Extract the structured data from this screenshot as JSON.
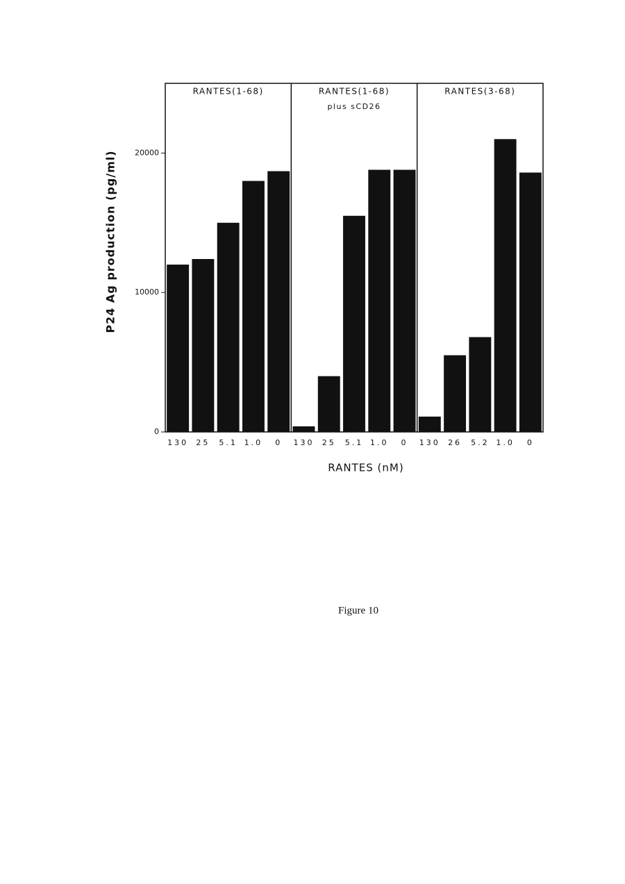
{
  "chart_data": {
    "type": "bar",
    "y_label": "P24  Ag  production  (pg/ml)",
    "x_label": "RANTES  (nM)",
    "ylim": [
      0,
      25000
    ],
    "yticks": [
      0,
      10000,
      20000
    ],
    "color": "#111111",
    "panels": [
      {
        "name_lines": [
          "RANTES(1-68)"
        ],
        "categories": [
          "130",
          "25",
          "5.1",
          "1.0",
          "0"
        ],
        "values": [
          12000,
          12400,
          15000,
          18000,
          18700
        ]
      },
      {
        "name_lines": [
          "RANTES(1-68)",
          "plus  sCD26"
        ],
        "categories": [
          "130",
          "25",
          "5.1",
          "1.0",
          "0"
        ],
        "values": [
          400,
          4000,
          15500,
          18800,
          18800
        ]
      },
      {
        "name_lines": [
          "RANTES(3-68)"
        ],
        "categories": [
          "130",
          "26",
          "5.2",
          "1.0",
          "0"
        ],
        "values": [
          1100,
          5500,
          6800,
          21000,
          18600
        ]
      }
    ]
  },
  "figure_caption": "Figure 10"
}
